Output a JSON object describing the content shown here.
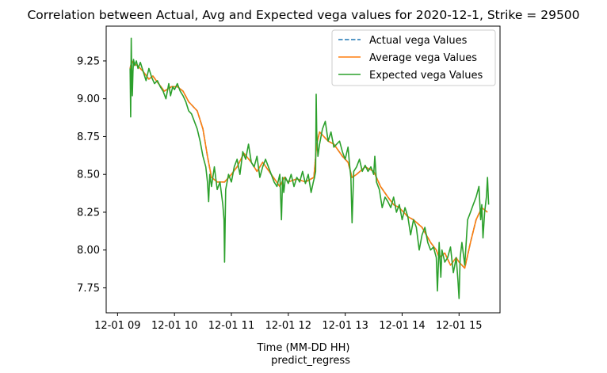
{
  "chart_data": {
    "type": "line",
    "title": "Correlation between Actual, Avg and Expected vega values for 2020-12-1, Strike = 29500",
    "xlabel": "Time (MM-DD HH)",
    "xlabel2": "predict_regress",
    "ylabel": "",
    "x_tick_labels": [
      "12-01 09",
      "12-01 10",
      "12-01 11",
      "12-01 12",
      "12-01 13",
      "12-01 14",
      "12-01 15"
    ],
    "x_tick_hours": [
      9,
      10,
      11,
      12,
      13,
      14,
      15
    ],
    "xlim": [
      8.8,
      15.72
    ],
    "y_ticks": [
      "7.75",
      "8.00",
      "8.25",
      "8.50",
      "8.75",
      "9.00",
      "9.25"
    ],
    "y_tick_values": [
      7.75,
      8.0,
      8.25,
      8.5,
      8.75,
      9.0,
      9.25
    ],
    "ylim": [
      7.585,
      9.48
    ],
    "grid": false,
    "legend_position": "top-right",
    "series": [
      {
        "name": "Actual vega Values",
        "color": "#1f77b4",
        "style": "dashed",
        "x": [
          9.22,
          9.25,
          9.28,
          9.35,
          9.45,
          9.55,
          9.62,
          9.72,
          9.82,
          9.95,
          10.05,
          10.15,
          10.25,
          10.4,
          10.5,
          10.58,
          10.65,
          10.75,
          10.88,
          11.0,
          11.1,
          11.22,
          11.35,
          11.45,
          11.55,
          11.7,
          11.85,
          11.93,
          12.0,
          12.15,
          12.3,
          12.45,
          12.5,
          12.55,
          12.7,
          12.8,
          12.95,
          13.05,
          13.12,
          13.2,
          13.35,
          13.5,
          13.62,
          13.75,
          13.85,
          13.95,
          14.1,
          14.2,
          14.35,
          14.5,
          14.6,
          14.65,
          14.75,
          14.85,
          14.95,
          15.0,
          15.1,
          15.2,
          15.3,
          15.4,
          15.5
        ],
        "y": [
          9.2,
          9.25,
          9.23,
          9.22,
          9.18,
          9.13,
          9.15,
          9.1,
          9.05,
          9.08,
          9.08,
          9.05,
          8.98,
          8.92,
          8.8,
          8.62,
          8.48,
          8.45,
          8.45,
          8.5,
          8.55,
          8.64,
          8.58,
          8.52,
          8.58,
          8.5,
          8.42,
          8.48,
          8.45,
          8.47,
          8.45,
          8.48,
          8.7,
          8.78,
          8.72,
          8.7,
          8.62,
          8.58,
          8.48,
          8.5,
          8.55,
          8.52,
          8.42,
          8.35,
          8.3,
          8.28,
          8.22,
          8.2,
          8.15,
          8.05,
          8.0,
          7.95,
          7.98,
          7.9,
          7.95,
          7.92,
          7.88,
          8.05,
          8.2,
          8.28,
          8.25
        ]
      },
      {
        "name": "Average vega Values",
        "color": "#ff7f0e",
        "style": "solid",
        "x": [
          9.22,
          9.25,
          9.28,
          9.35,
          9.45,
          9.55,
          9.62,
          9.72,
          9.82,
          9.95,
          10.05,
          10.15,
          10.25,
          10.4,
          10.5,
          10.58,
          10.65,
          10.75,
          10.88,
          11.0,
          11.1,
          11.22,
          11.35,
          11.45,
          11.55,
          11.7,
          11.85,
          11.93,
          12.0,
          12.15,
          12.3,
          12.45,
          12.5,
          12.55,
          12.7,
          12.8,
          12.95,
          13.05,
          13.12,
          13.2,
          13.35,
          13.5,
          13.62,
          13.75,
          13.85,
          13.95,
          14.1,
          14.2,
          14.35,
          14.5,
          14.6,
          14.65,
          14.75,
          14.85,
          14.95,
          15.0,
          15.1,
          15.2,
          15.3,
          15.4,
          15.5
        ],
        "y": [
          9.2,
          9.25,
          9.23,
          9.22,
          9.18,
          9.13,
          9.15,
          9.1,
          9.05,
          9.08,
          9.08,
          9.05,
          8.98,
          8.92,
          8.8,
          8.62,
          8.48,
          8.45,
          8.45,
          8.5,
          8.55,
          8.64,
          8.58,
          8.52,
          8.58,
          8.5,
          8.42,
          8.48,
          8.45,
          8.47,
          8.45,
          8.48,
          8.7,
          8.78,
          8.72,
          8.7,
          8.62,
          8.58,
          8.48,
          8.5,
          8.55,
          8.52,
          8.42,
          8.35,
          8.3,
          8.28,
          8.22,
          8.2,
          8.15,
          8.05,
          8.0,
          7.95,
          7.98,
          7.9,
          7.95,
          7.92,
          7.88,
          8.05,
          8.2,
          8.28,
          8.25
        ]
      },
      {
        "name": "Expected vega Values",
        "color": "#2ca02c",
        "style": "solid",
        "x": [
          9.22,
          9.23,
          9.24,
          9.25,
          9.26,
          9.27,
          9.28,
          9.3,
          9.33,
          9.36,
          9.4,
          9.45,
          9.5,
          9.55,
          9.6,
          9.65,
          9.7,
          9.75,
          9.8,
          9.85,
          9.9,
          9.93,
          9.97,
          10.0,
          10.05,
          10.1,
          10.15,
          10.2,
          10.25,
          10.3,
          10.35,
          10.4,
          10.45,
          10.5,
          10.55,
          10.58,
          10.6,
          10.62,
          10.65,
          10.7,
          10.75,
          10.8,
          10.85,
          10.87,
          10.88,
          10.9,
          10.95,
          11.0,
          11.05,
          11.1,
          11.15,
          11.2,
          11.25,
          11.3,
          11.35,
          11.4,
          11.45,
          11.5,
          11.55,
          11.6,
          11.65,
          11.7,
          11.75,
          11.8,
          11.85,
          11.88,
          11.9,
          11.92,
          11.95,
          12.0,
          12.05,
          12.1,
          12.15,
          12.2,
          12.25,
          12.3,
          12.35,
          12.4,
          12.44,
          12.46,
          12.48,
          12.49,
          12.5,
          12.52,
          12.55,
          12.6,
          12.65,
          12.7,
          12.75,
          12.8,
          12.85,
          12.9,
          12.95,
          13.0,
          13.05,
          13.08,
          13.1,
          13.12,
          13.15,
          13.2,
          13.25,
          13.3,
          13.35,
          13.4,
          13.45,
          13.5,
          13.52,
          13.55,
          13.6,
          13.65,
          13.7,
          13.75,
          13.8,
          13.85,
          13.9,
          13.95,
          14.0,
          14.05,
          14.1,
          14.15,
          14.2,
          14.25,
          14.3,
          14.35,
          14.4,
          14.45,
          14.5,
          14.55,
          14.6,
          14.62,
          14.65,
          14.68,
          14.7,
          14.75,
          14.8,
          14.85,
          14.9,
          14.95,
          14.98,
          15.0,
          15.02,
          15.05,
          15.1,
          15.15,
          15.2,
          15.25,
          15.3,
          15.35,
          15.38,
          15.4,
          15.42,
          15.45,
          15.48,
          15.5,
          15.52
        ],
        "y": [
          9.2,
          8.88,
          9.4,
          9.15,
          9.02,
          9.18,
          9.26,
          9.22,
          9.25,
          9.2,
          9.24,
          9.18,
          9.12,
          9.2,
          9.14,
          9.1,
          9.12,
          9.08,
          9.05,
          9.0,
          9.1,
          9.02,
          9.08,
          9.06,
          9.1,
          9.05,
          9.02,
          8.98,
          8.92,
          8.9,
          8.85,
          8.8,
          8.72,
          8.62,
          8.55,
          8.45,
          8.32,
          8.5,
          8.42,
          8.55,
          8.4,
          8.45,
          8.3,
          8.2,
          7.92,
          8.4,
          8.5,
          8.45,
          8.55,
          8.6,
          8.5,
          8.65,
          8.6,
          8.7,
          8.58,
          8.55,
          8.62,
          8.48,
          8.55,
          8.6,
          8.55,
          8.5,
          8.45,
          8.42,
          8.5,
          8.2,
          8.48,
          8.38,
          8.48,
          8.44,
          8.5,
          8.42,
          8.48,
          8.45,
          8.52,
          8.44,
          8.5,
          8.38,
          8.45,
          8.48,
          8.52,
          9.03,
          8.78,
          8.62,
          8.7,
          8.8,
          8.85,
          8.72,
          8.78,
          8.68,
          8.7,
          8.72,
          8.65,
          8.6,
          8.68,
          8.55,
          8.48,
          8.18,
          8.52,
          8.55,
          8.6,
          8.52,
          8.56,
          8.52,
          8.55,
          8.5,
          8.62,
          8.45,
          8.4,
          8.28,
          8.35,
          8.32,
          8.28,
          8.35,
          8.25,
          8.3,
          8.2,
          8.28,
          8.22,
          8.1,
          8.2,
          8.15,
          8.0,
          8.1,
          8.15,
          8.05,
          8.0,
          8.02,
          7.95,
          7.73,
          8.05,
          7.82,
          8.0,
          7.92,
          7.95,
          8.02,
          7.85,
          7.95,
          7.8,
          7.68,
          7.95,
          8.05,
          7.9,
          8.2,
          8.25,
          8.3,
          8.35,
          8.42,
          8.2,
          8.3,
          8.08,
          8.25,
          8.35,
          8.48,
          8.3
        ]
      }
    ]
  }
}
